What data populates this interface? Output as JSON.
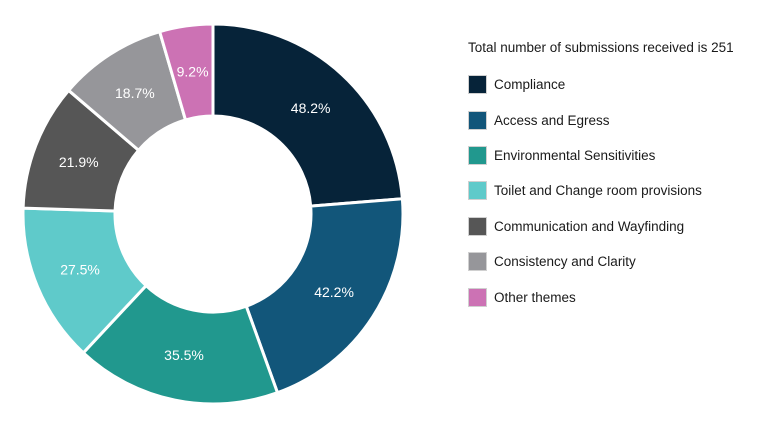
{
  "chart_data": {
    "type": "pie",
    "title": "Total number of submissions received is 251",
    "series": [
      {
        "name": "Compliance",
        "value": 48.2,
        "label": "48.2%",
        "color": "#062339"
      },
      {
        "name": "Access and Egress",
        "value": 42.2,
        "label": "42.2%",
        "color": "#12567a"
      },
      {
        "name": "Environmental Sensitivities",
        "value": 35.5,
        "label": "35.5%",
        "color": "#21988e"
      },
      {
        "name": "Toilet and Change room provisions",
        "value": 27.5,
        "label": "27.5%",
        "color": "#5fcaca"
      },
      {
        "name": "Communication and Wayfinding",
        "value": 21.9,
        "label": "21.9%",
        "color": "#565656"
      },
      {
        "name": "Consistency and Clarity",
        "value": 18.7,
        "label": "18.7%",
        "color": "#96969a"
      },
      {
        "name": "Other themes",
        "value": 9.2,
        "label": "9.2%",
        "color": "#cc72b4"
      }
    ],
    "legend_position": "right"
  }
}
